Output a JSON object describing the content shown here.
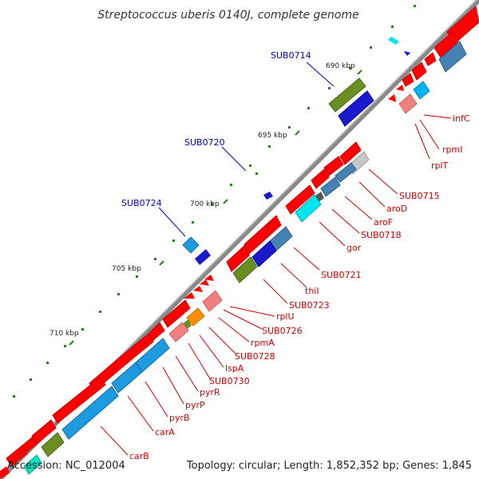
{
  "title": "Streptococcus uberis 0140J, complete genome",
  "footer": {
    "accession": "Accession: NC_012004",
    "summary": "Topology: circular; Length: 1,852,352 bp; Genes: 1,845"
  },
  "colors": {
    "label_red": "#cc0000",
    "label_blue": "#0000cc",
    "backbone": "#808080",
    "tick": "#2e7d1e"
  },
  "kbp_labels": [
    "690 kbp",
    "695 kbp",
    "700 kbp",
    "705 kbp",
    "710 kbp"
  ],
  "outer_labels": [
    "SUB0714",
    "SUB0720",
    "SUB0724"
  ],
  "inner_labels": [
    "infC",
    "rpmI",
    "rplT",
    "SUB0715",
    "aroD",
    "aroF",
    "SUB0718",
    "gor",
    "SUB0721",
    "thiI",
    "SUB0723",
    "rplU",
    "SUB0726",
    "rpmA",
    "SUB0728",
    "lspA",
    "SUB0730",
    "pyrR",
    "pyrP",
    "pyrB",
    "carA",
    "carB"
  ]
}
